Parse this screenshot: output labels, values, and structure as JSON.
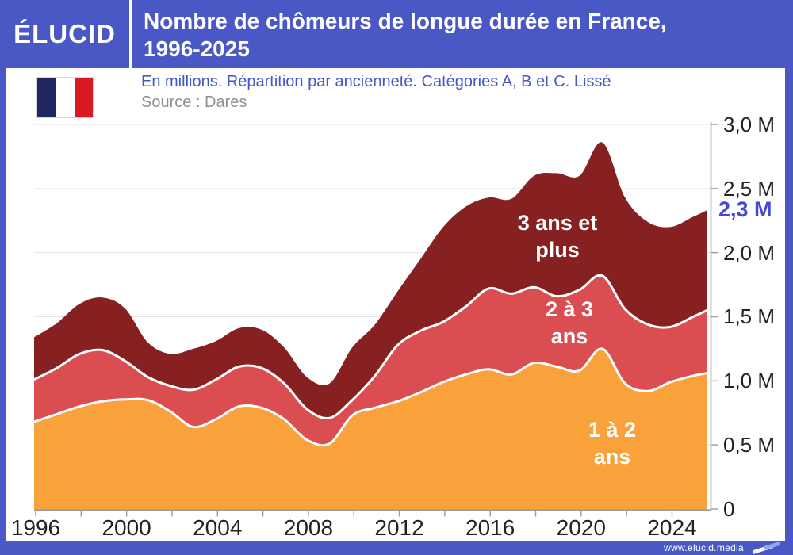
{
  "header": {
    "logo": "ÉLUCID",
    "title_line1": "Nombre de chômeurs de longue durée en France,",
    "title_line2": "1996-2025"
  },
  "subtitle": "En millions. Répartition par ancienneté. Catégories A, B et C. Lissé",
  "source": "Source : Dares",
  "footer": {
    "url": "www.elucid.media"
  },
  "annotation": {
    "label": "2,3 M",
    "value": 2.33
  },
  "colors": {
    "header_blue": "#4a58c6",
    "subtitle_blue": "#4656c8",
    "annotation_blue": "#4447d8",
    "gridline": "#e4e4e7",
    "axis": "#9b9b9b",
    "flag_navy": "#20265f",
    "flag_red": "#d91a23"
  },
  "chart_data": {
    "type": "area",
    "stacked": true,
    "smoothed": true,
    "title": "Nombre de chômeurs de longue durée en France, 1996-2025",
    "xlabel": "",
    "ylabel": "En millions",
    "ylim": [
      0,
      3.0
    ],
    "xlim": [
      1996,
      2025.6
    ],
    "grid": "horizontal",
    "x": [
      1996,
      1997,
      1998,
      1999,
      2000,
      2001,
      2002,
      2003,
      2004,
      2005,
      2006,
      2007,
      2008,
      2009,
      2010,
      2011,
      2012,
      2013,
      2014,
      2015,
      2016,
      2017,
      2018,
      2019,
      2020,
      2021,
      2022,
      2023,
      2024,
      2025,
      2025.6
    ],
    "series": [
      {
        "name": "1 à 2 ans",
        "label_lines": [
          "1 à 2",
          "ans"
        ],
        "color": "#f9a23b",
        "values": [
          0.68,
          0.74,
          0.8,
          0.84,
          0.855,
          0.85,
          0.76,
          0.64,
          0.7,
          0.8,
          0.79,
          0.7,
          0.54,
          0.51,
          0.73,
          0.79,
          0.84,
          0.91,
          0.99,
          1.05,
          1.09,
          1.05,
          1.14,
          1.11,
          1.08,
          1.25,
          0.98,
          0.92,
          0.99,
          1.04,
          1.06
        ]
      },
      {
        "name": "2 à 3 ans",
        "label_lines": [
          "2 à 3",
          "ans"
        ],
        "color": "#da4e51",
        "values": [
          0.33,
          0.36,
          0.41,
          0.4,
          0.3,
          0.18,
          0.2,
          0.29,
          0.31,
          0.31,
          0.31,
          0.28,
          0.24,
          0.2,
          0.12,
          0.25,
          0.44,
          0.48,
          0.47,
          0.53,
          0.63,
          0.63,
          0.59,
          0.55,
          0.63,
          0.57,
          0.58,
          0.52,
          0.43,
          0.46,
          0.49
        ]
      },
      {
        "name": "3 ans et plus",
        "label_lines": [
          "3 ans et",
          "plus"
        ],
        "color": "#872121",
        "values": [
          0.33,
          0.35,
          0.39,
          0.41,
          0.41,
          0.27,
          0.25,
          0.32,
          0.3,
          0.3,
          0.3,
          0.28,
          0.25,
          0.27,
          0.41,
          0.4,
          0.42,
          0.56,
          0.74,
          0.78,
          0.71,
          0.74,
          0.87,
          0.96,
          0.89,
          1.04,
          0.87,
          0.8,
          0.78,
          0.78,
          0.78
        ]
      }
    ],
    "y_ticks": [
      {
        "value": 0,
        "label": "0"
      },
      {
        "value": 0.5,
        "label": "0,5 M"
      },
      {
        "value": 1.0,
        "label": "1,0 M"
      },
      {
        "value": 1.5,
        "label": "1,5 M"
      },
      {
        "value": 2.0,
        "label": "2,0 M"
      },
      {
        "value": 2.5,
        "label": "2,5 M"
      },
      {
        "value": 3.0,
        "label": "3,0 M"
      }
    ],
    "x_minor_ticks": [
      1996,
      1998,
      2000,
      2002,
      2004,
      2006,
      2008,
      2010,
      2012,
      2014,
      2016,
      2018,
      2020,
      2022,
      2024
    ],
    "x_tick_labels": [
      1996,
      2000,
      2004,
      2008,
      2012,
      2016,
      2020,
      2024
    ],
    "final_value_label": "2,3 M"
  }
}
